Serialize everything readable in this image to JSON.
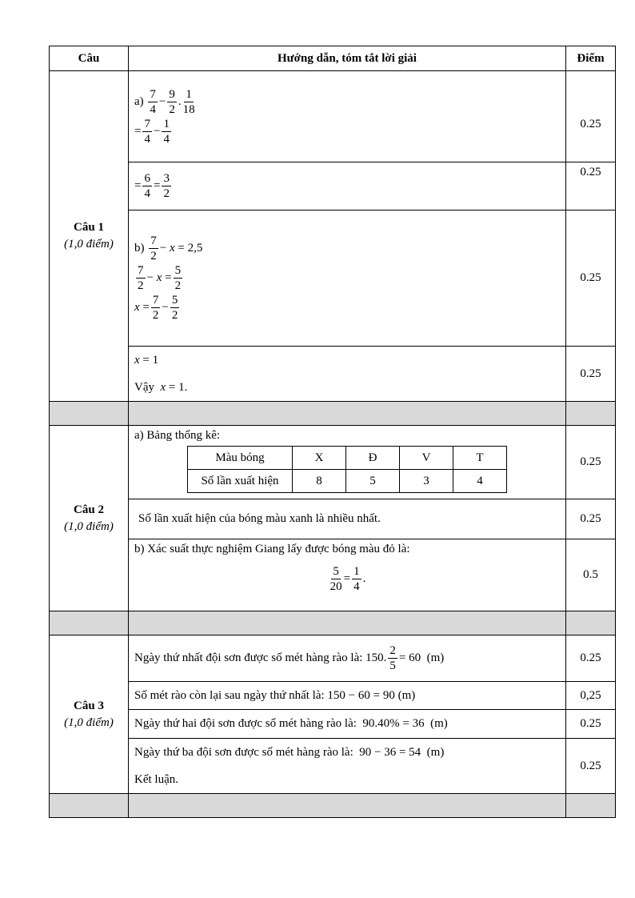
{
  "header": {
    "col1": "Câu",
    "col2": "Hướng dẫn, tóm tắt lời giải",
    "col3": "Điểm"
  },
  "q1": {
    "title": "Câu 1",
    "points": "(1,0 điểm)",
    "rows": [
      {
        "score": "0.25",
        "lines": [
          [
            "a) ",
            {
              "n": "7",
              "d": "4"
            },
            "−",
            {
              "n": "9",
              "d": "2"
            },
            ".",
            {
              "n": "1",
              "d": "18"
            }
          ],
          [
            "=",
            {
              "n": "7",
              "d": "4"
            },
            "−",
            {
              "n": "1",
              "d": "4"
            }
          ]
        ]
      },
      {
        "score": "0.25",
        "lines": [
          [
            "=",
            {
              "n": "6",
              "d": "4"
            },
            "=",
            {
              "n": "3",
              "d": "2"
            }
          ]
        ]
      },
      {
        "score": "0.25",
        "lines": [
          [
            "b) ",
            {
              "n": "7",
              "d": "2"
            },
            "− ",
            {
              "i": "x"
            },
            " = 2,5"
          ],
          [
            {
              "n": "7",
              "d": "2"
            },
            "− ",
            {
              "i": "x"
            },
            " =",
            {
              "n": "5",
              "d": "2"
            }
          ],
          [
            {
              "i": "x"
            },
            " =",
            {
              "n": "7",
              "d": "2"
            },
            "−",
            {
              "n": "5",
              "d": "2"
            }
          ]
        ]
      },
      {
        "score": "0.25",
        "lines": [
          [
            {
              "i": "x"
            },
            " = 1"
          ],
          [
            "Vậy  ",
            {
              "i": "x"
            },
            " = 1."
          ]
        ]
      }
    ]
  },
  "q2": {
    "title": "Câu 2",
    "points": "(1,0 điểm)",
    "a_label": "a) Bảng thống kê:",
    "stats_table": {
      "header": [
        "Màu bóng",
        "X",
        "Đ",
        "V",
        "T"
      ],
      "row": [
        "Số lần xuất hiện",
        "8",
        "5",
        "3",
        "4"
      ]
    },
    "a_score": "0.25",
    "conclusion": "Số lần xuất hiện của bóng màu xanh là nhiều nhất.",
    "conclusion_score": "0.25",
    "b_label": "b) Xác suất thực nghiệm Giang lấy được bóng màu đỏ là:",
    "b_math": [
      {
        "n": "5",
        "d": "20"
      },
      "=",
      {
        "n": "1",
        "d": "4"
      },
      "."
    ],
    "b_score": "0.5"
  },
  "q3": {
    "title": "Câu 3",
    "points": "(1,0 điểm)",
    "rows": [
      {
        "score": "0.25",
        "lines": [
          [
            "Ngày thứ nhất đội sơn được số mét hàng rào là: 150.",
            {
              "n": "2",
              "d": "5"
            },
            "= 60  (m)"
          ]
        ]
      },
      {
        "score": "0,25",
        "lines": [
          [
            "Số mét rào còn lại sau ngày thứ nhất là: 150 − 60 = 90 (m)"
          ]
        ]
      },
      {
        "score": "0.25",
        "lines": [
          [
            "Ngày thứ hai đội sơn được số mét hàng rào là:  90.40% = 36  (m)"
          ]
        ]
      },
      {
        "score": "0.25",
        "lines": [
          [
            "Ngày thứ ba đội sơn được số mét hàng rào là:  90 − 36 = 54  (m)"
          ],
          [
            "Kết luận."
          ]
        ]
      }
    ]
  }
}
